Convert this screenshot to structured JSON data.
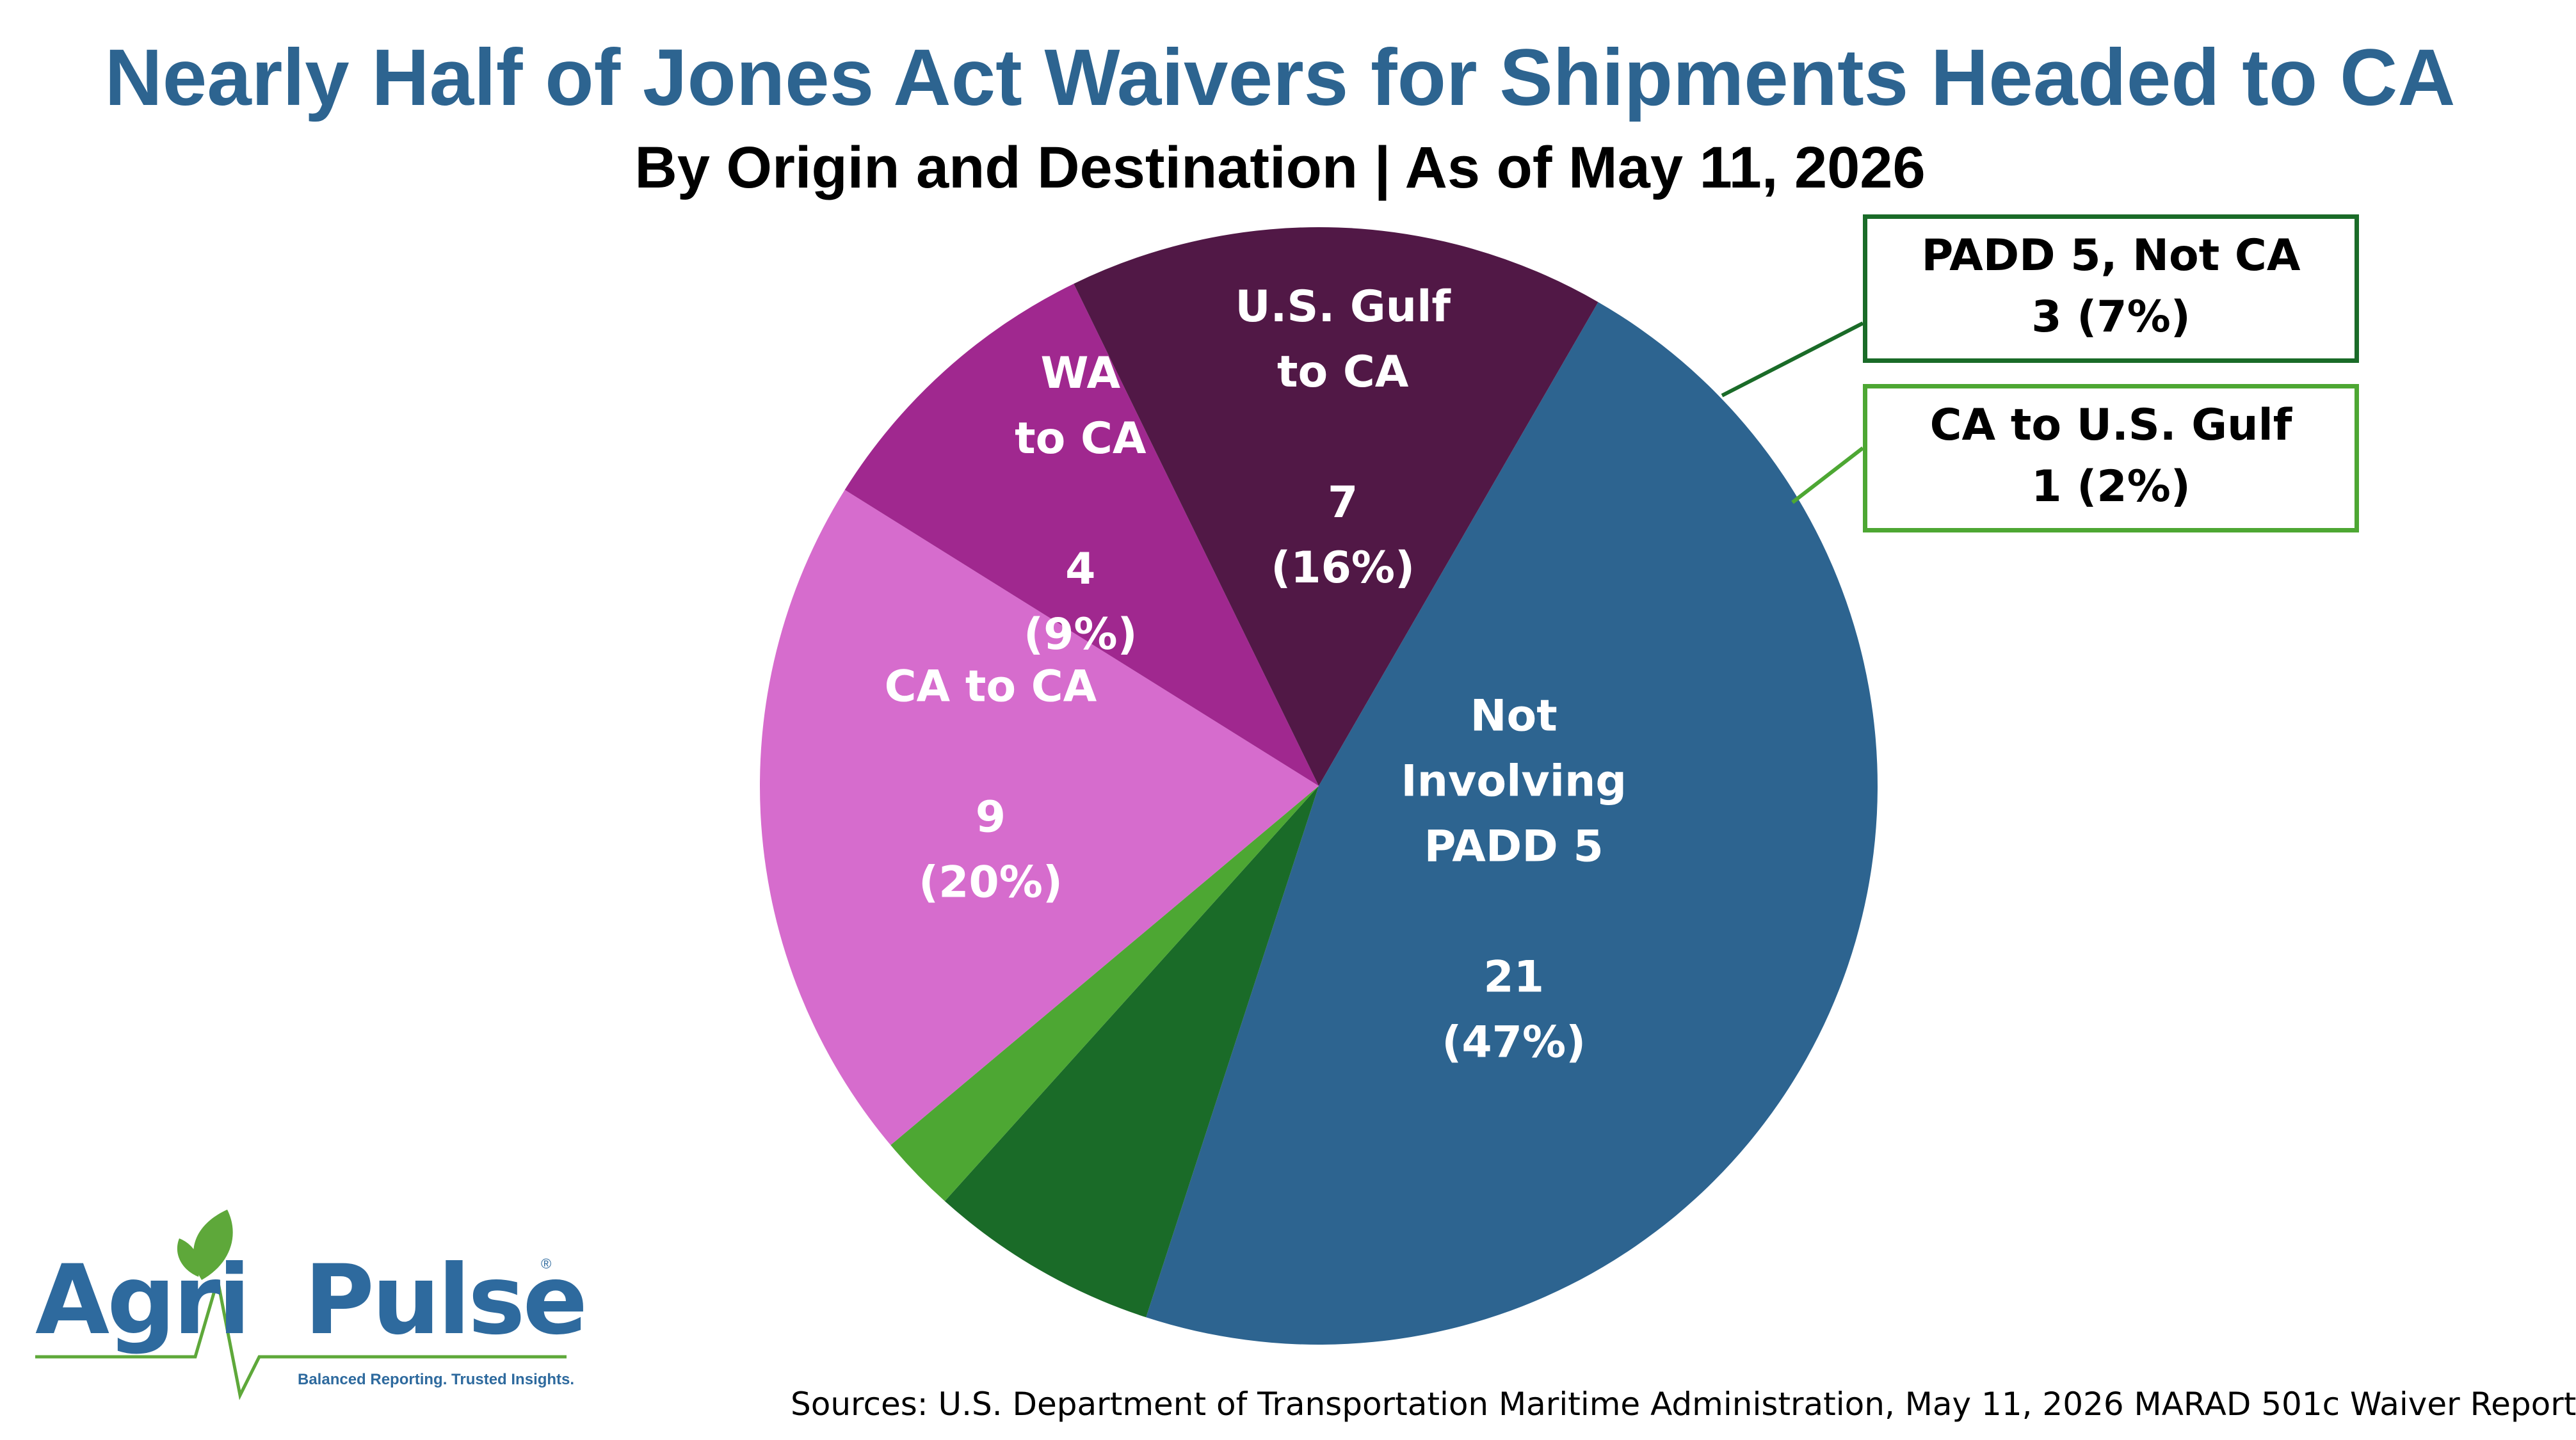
{
  "chart_data": {
    "type": "pie",
    "title": "Nearly Half of Jones Act Waivers for Shipments Headed to CA",
    "subtitle": "By Origin and Destination | As of May 11, 2026",
    "slices": [
      {
        "label": "Not Involving PADD 5",
        "value": 21,
        "percent_label": "(47%)",
        "color": "#2d6490"
      },
      {
        "label": "PADD 5, Not CA",
        "value": 3,
        "percent_label": "(7%)",
        "color": "#1a6b28"
      },
      {
        "label": "CA to U.S. Gulf",
        "value": 1,
        "percent_label": "(2%)",
        "color": "#4da733"
      },
      {
        "label": "CA to CA",
        "value": 9,
        "percent_label": "(20%)",
        "color": "#d66ccd"
      },
      {
        "label": "WA to CA",
        "value": 4,
        "percent_label": "(9%)",
        "color": "#a0288f"
      },
      {
        "label": "U.S. Gulf to CA",
        "value": 7,
        "percent_label": "(16%)",
        "color": "#511846"
      }
    ],
    "slice_label_lines": [
      [
        "Not",
        "Involving",
        "PADD 5",
        "",
        "21",
        "(47%)"
      ],
      [],
      [],
      [
        "CA to CA",
        "",
        "9",
        "(20%)"
      ],
      [
        "WA",
        "to CA",
        "",
        "4",
        "(9%)"
      ],
      [
        "U.S. Gulf",
        "to CA",
        "",
        "7",
        "(16%)"
      ]
    ],
    "callouts": {
      "padd5_not_ca": {
        "line1": "PADD 5, Not CA",
        "line2": "3 (7%)"
      },
      "ca_to_us_gulf": {
        "line1": "CA to U.S. Gulf",
        "line2": "1 (2%)"
      }
    },
    "legend": "none"
  },
  "logo": {
    "brand_left": "Agri",
    "brand_right": "Pulse",
    "tagline": "Balanced Reporting. Trusted Insights.",
    "registered": "®",
    "leaf_color": "#5ea83a",
    "text_color": "#2e6a9e"
  },
  "source": "Sources: U.S. Department of Transportation Maritime Administration, May 11, 2026 MARAD 501c Waiver Report"
}
